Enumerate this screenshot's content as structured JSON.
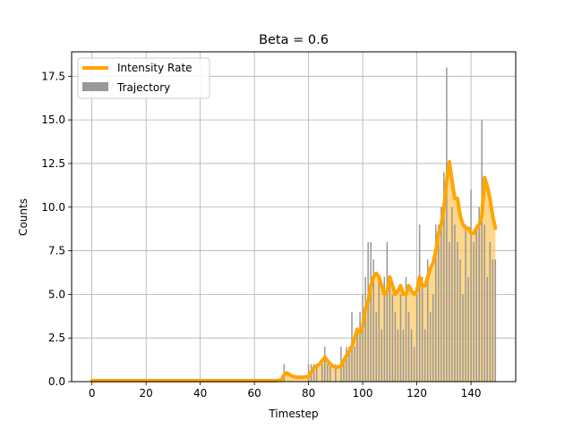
{
  "chart_data": {
    "type": "bar",
    "title": "Beta = 0.6",
    "xlabel": "Timestep",
    "ylabel": "Counts",
    "xlim": [
      -7.5,
      156.5
    ],
    "ylim": [
      0,
      18.9
    ],
    "xticks": [
      0,
      20,
      40,
      60,
      80,
      100,
      120,
      140
    ],
    "xtick_labels": [
      "0",
      "20",
      "40",
      "60",
      "80",
      "100",
      "120",
      "140"
    ],
    "yticks": [
      0,
      2.5,
      5,
      7.5,
      10,
      12.5,
      15,
      17.5
    ],
    "ytick_labels": [
      "0.0",
      "2.5",
      "5.0",
      "7.5",
      "10.0",
      "12.5",
      "15.0",
      "17.5"
    ],
    "grid": true,
    "legend_position": "top-left",
    "colors": {
      "bar": "#999999",
      "rate": "#ffa500",
      "rate_fill": "#ffc966"
    },
    "series": [
      {
        "name": "Intensity Rate",
        "kind": "line",
        "x": [
          0,
          10,
          20,
          30,
          40,
          50,
          60,
          65,
          68,
          70,
          71,
          72,
          74,
          76,
          78,
          80,
          82,
          84,
          86,
          88,
          90,
          92,
          94,
          96,
          97,
          98,
          99,
          100,
          101,
          102,
          103,
          104,
          105,
          106,
          107,
          108,
          109,
          110,
          111,
          112,
          113,
          114,
          115,
          116,
          117,
          118,
          119,
          120,
          121,
          122,
          123,
          124,
          125,
          126,
          127,
          128,
          129,
          130,
          131,
          132,
          133,
          134,
          135,
          136,
          137,
          138,
          139,
          140,
          141,
          142,
          143,
          144,
          145,
          146,
          147,
          148,
          149
        ],
        "values": [
          0.05,
          0.05,
          0.05,
          0.05,
          0.05,
          0.05,
          0.05,
          0.05,
          0.05,
          0.1,
          0.4,
          0.5,
          0.3,
          0.25,
          0.25,
          0.3,
          0.8,
          1.0,
          1.4,
          1.0,
          0.8,
          0.9,
          1.5,
          2.0,
          2.5,
          3.0,
          2.8,
          3.2,
          4.2,
          4.6,
          5.5,
          6.0,
          6.2,
          6.0,
          5.5,
          5.0,
          5.2,
          6.0,
          5.5,
          5.0,
          5.2,
          5.5,
          5.0,
          5.0,
          5.5,
          5.2,
          5.0,
          5.2,
          6.0,
          5.5,
          5.5,
          6.0,
          6.5,
          6.8,
          7.5,
          8.5,
          9.0,
          10.0,
          11.5,
          12.6,
          11.5,
          10.5,
          10.5,
          9.5,
          9.0,
          8.8,
          8.8,
          8.5,
          8.5,
          8.8,
          9.0,
          9.5,
          11.7,
          11.2,
          10.5,
          9.5,
          8.8
        ]
      },
      {
        "name": "Trajectory",
        "kind": "bar",
        "x": [
          71,
          80,
          81,
          82,
          83,
          85,
          86,
          87,
          88,
          90,
          92,
          93,
          94,
          95,
          96,
          97,
          98,
          99,
          100,
          101,
          102,
          103,
          104,
          105,
          106,
          107,
          108,
          109,
          110,
          111,
          112,
          113,
          114,
          115,
          116,
          117,
          118,
          119,
          120,
          121,
          122,
          123,
          124,
          125,
          126,
          127,
          128,
          129,
          130,
          131,
          132,
          133,
          134,
          135,
          136,
          137,
          138,
          139,
          140,
          141,
          142,
          143,
          144,
          145,
          146,
          147,
          148,
          149
        ],
        "values": [
          1,
          1,
          1,
          1,
          1,
          1,
          2,
          1,
          1,
          1,
          2,
          1,
          2,
          2,
          4,
          2,
          3,
          4,
          5,
          6,
          8,
          8,
          7,
          4,
          6,
          3,
          6,
          8,
          6,
          5,
          4,
          3,
          5,
          3,
          6,
          4,
          3,
          2,
          5,
          9,
          6,
          3,
          7,
          4,
          5,
          9,
          9,
          10,
          12,
          18,
          8,
          10,
          9,
          8,
          7,
          5,
          9,
          6,
          11,
          8,
          9,
          10,
          15,
          9,
          6,
          8,
          7,
          7
        ]
      }
    ]
  }
}
